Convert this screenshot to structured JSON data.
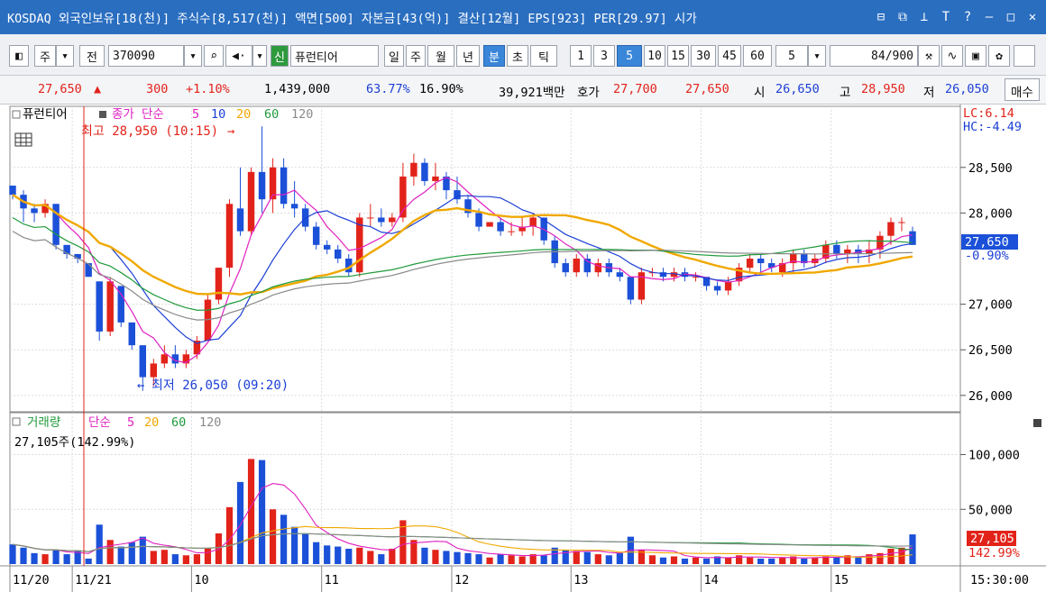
{
  "title": {
    "text": "KOSDAQ 외국인보유[18(천)] 주식수[8,517(천)] 액면[500] 자본금[43(억)] 결산[12월] EPS[923] PER[29.97] 시가",
    "window_icons": [
      "restore-icon",
      "copy-icon",
      "pin-icon",
      "text-icon",
      "help-icon",
      "minimize-icon",
      "maximize-icon",
      "close-icon"
    ]
  },
  "toolbar": {
    "market_label": "주",
    "prev_label": "전",
    "code_value": "370090",
    "badge_label": "신",
    "stock_name": "퓨런티어",
    "periods": [
      "일",
      "주",
      "월",
      "년",
      "분",
      "초",
      "틱"
    ],
    "active_period": "분",
    "intervals": [
      "1",
      "3",
      "5",
      "10",
      "15",
      "30",
      "45",
      "60"
    ],
    "active_interval": "5",
    "interval_select": "5",
    "count_value": "84",
    "count_total": "/900"
  },
  "info": {
    "price": "27,650",
    "change": "300",
    "change_pct": "+1.10%",
    "volume": "1,439,000",
    "pct1": "63.77%",
    "pct2": "16.90%",
    "amount": "39,921백만",
    "hoga_label": "호가",
    "ask": "27,700",
    "bid": "27,650",
    "open_label": "시",
    "open": "26,650",
    "high_label": "고",
    "high": "28,950",
    "low_label": "저",
    "low": "26,050",
    "trade_label": "매수"
  },
  "price_panel": {
    "stock_tag": "퓨런티어",
    "legend_main": "종가 단순",
    "ma_labels": [
      "5",
      "10",
      "20",
      "60",
      "120"
    ],
    "ma_colors": [
      "#e020c0",
      "#1b3fd6",
      "#f0a800",
      "#1f9a3a",
      "#8a8a8a"
    ],
    "high_marker": "최고 28,950 (10:15)",
    "low_marker": "최저 26,050 (09:20)",
    "lc": "LC:6.14",
    "hc": "HC:-4.49",
    "last_price": "27,650",
    "last_pct": "-0.90%",
    "y_ticks": [
      "28,500",
      "28,000",
      "27,000",
      "26,500",
      "26,000"
    ]
  },
  "volume_panel": {
    "legend_main": "거래량",
    "legend_ma": "단순",
    "ma_labels": [
      "5",
      "20",
      "60",
      "120"
    ],
    "readout": "27,105주(142.99%)",
    "last_volume": "27,105",
    "last_pct": "142.99%",
    "y_ticks": [
      "100,000",
      "50,000"
    ]
  },
  "x_axis": {
    "labels": [
      "11/20",
      "11/21",
      "10",
      "11",
      "12",
      "13",
      "14",
      "15"
    ],
    "time_label": "15:30:00"
  },
  "chart_data": {
    "type": "candlestick",
    "y_range": [
      25850,
      29150
    ],
    "up_color": "#e2231a",
    "down_color": "#1b50d8",
    "candles": [
      [
        28300,
        28300,
        28150,
        28200
      ],
      [
        28200,
        28250,
        27900,
        28050
      ],
      [
        28050,
        28100,
        27900,
        28000
      ],
      [
        28000,
        28150,
        27950,
        28100
      ],
      [
        28100,
        28100,
        27600,
        27650
      ],
      [
        27650,
        27650,
        27500,
        27550
      ],
      [
        27550,
        27550,
        27450,
        27500
      ],
      [
        27450,
        27450,
        27300,
        27300
      ],
      [
        27250,
        27250,
        26600,
        26700
      ],
      [
        26700,
        27300,
        26650,
        27250
      ],
      [
        27200,
        27200,
        26750,
        26800
      ],
      [
        26800,
        26800,
        26500,
        26550
      ],
      [
        26550,
        26550,
        26050,
        26200
      ],
      [
        26200,
        26400,
        26100,
        26350
      ],
      [
        26350,
        26550,
        26300,
        26450
      ],
      [
        26450,
        26550,
        26300,
        26350
      ],
      [
        26350,
        26500,
        26300,
        26450
      ],
      [
        26450,
        26650,
        26400,
        26600
      ],
      [
        26600,
        27100,
        26600,
        27050
      ],
      [
        27050,
        27400,
        27000,
        27400
      ],
      [
        27400,
        28150,
        27300,
        28100
      ],
      [
        28050,
        28500,
        27750,
        27800
      ],
      [
        27800,
        28500,
        27750,
        28450
      ],
      [
        28450,
        28950,
        28000,
        28150
      ],
      [
        28150,
        28600,
        28000,
        28500
      ],
      [
        28500,
        28600,
        28050,
        28100
      ],
      [
        28100,
        28350,
        27950,
        28050
      ],
      [
        28050,
        28100,
        27800,
        27850
      ],
      [
        27850,
        27900,
        27600,
        27650
      ],
      [
        27650,
        27700,
        27550,
        27600
      ],
      [
        27600,
        27650,
        27450,
        27500
      ],
      [
        27500,
        27550,
        27300,
        27350
      ],
      [
        27350,
        28000,
        27300,
        27950
      ],
      [
        27950,
        28100,
        27850,
        27950
      ],
      [
        27950,
        28050,
        27850,
        27900
      ],
      [
        27900,
        28000,
        27850,
        27950
      ],
      [
        27950,
        28550,
        27900,
        28400
      ],
      [
        28400,
        28650,
        28300,
        28550
      ],
      [
        28550,
        28600,
        28300,
        28350
      ],
      [
        28350,
        28550,
        28250,
        28400
      ],
      [
        28400,
        28450,
        28150,
        28250
      ],
      [
        28250,
        28400,
        28100,
        28150
      ],
      [
        28150,
        28200,
        27950,
        28000
      ],
      [
        28000,
        28050,
        27800,
        27850
      ],
      [
        27850,
        27900,
        27850,
        27900
      ],
      [
        27900,
        27950,
        27750,
        27800
      ],
      [
        27800,
        27900,
        27750,
        27800
      ],
      [
        27800,
        27950,
        27750,
        27850
      ],
      [
        27850,
        28000,
        27750,
        27950
      ],
      [
        27950,
        27950,
        27650,
        27700
      ],
      [
        27700,
        27750,
        27400,
        27450
      ],
      [
        27450,
        27500,
        27300,
        27350
      ],
      [
        27350,
        27550,
        27300,
        27500
      ],
      [
        27500,
        27550,
        27300,
        27350
      ],
      [
        27350,
        27500,
        27300,
        27450
      ],
      [
        27450,
        27500,
        27300,
        27350
      ],
      [
        27350,
        27400,
        27250,
        27300
      ],
      [
        27300,
        27300,
        27000,
        27050
      ],
      [
        27050,
        27400,
        27000,
        27350
      ],
      [
        27350,
        27400,
        27300,
        27350
      ],
      [
        27350,
        27400,
        27250,
        27300
      ],
      [
        27300,
        27400,
        27250,
        27350
      ],
      [
        27350,
        27400,
        27250,
        27300
      ],
      [
        27300,
        27350,
        27250,
        27300
      ],
      [
        27300,
        27300,
        27150,
        27200
      ],
      [
        27200,
        27250,
        27100,
        27150
      ],
      [
        27150,
        27300,
        27100,
        27250
      ],
      [
        27250,
        27450,
        27200,
        27400
      ],
      [
        27400,
        27550,
        27350,
        27500
      ],
      [
        27500,
        27550,
        27350,
        27450
      ],
      [
        27450,
        27500,
        27350,
        27400
      ],
      [
        27350,
        27500,
        27300,
        27450
      ],
      [
        27450,
        27600,
        27350,
        27550
      ],
      [
        27550,
        27600,
        27400,
        27450
      ],
      [
        27450,
        27550,
        27400,
        27500
      ],
      [
        27500,
        27700,
        27450,
        27650
      ],
      [
        27650,
        27700,
        27500,
        27550
      ],
      [
        27550,
        27650,
        27450,
        27600
      ],
      [
        27600,
        27650,
        27450,
        27550
      ],
      [
        27550,
        27700,
        27450,
        27600
      ],
      [
        27600,
        27800,
        27500,
        27750
      ],
      [
        27750,
        27950,
        27650,
        27900
      ],
      [
        27900,
        27950,
        27800,
        27900
      ],
      [
        27800,
        27850,
        27650,
        27650
      ]
    ],
    "volumes": [
      18000,
      15000,
      10000,
      9000,
      13000,
      9000,
      12000,
      5000,
      36000,
      22000,
      16000,
      20000,
      25000,
      12000,
      13000,
      9000,
      8000,
      9000,
      14000,
      28000,
      52000,
      75000,
      96000,
      95000,
      50000,
      45000,
      34000,
      28000,
      20000,
      17000,
      16000,
      14000,
      15000,
      12000,
      9000,
      14000,
      40000,
      22000,
      15000,
      13000,
      12000,
      11000,
      10000,
      9000,
      6000,
      9000,
      8000,
      7000,
      9000,
      8000,
      15000,
      13000,
      12000,
      11000,
      9000,
      8000,
      10000,
      25000,
      13000,
      8000,
      6000,
      7000,
      5000,
      6000,
      5000,
      7000,
      6000,
      8000,
      6000,
      5000,
      5000,
      6000,
      7000,
      5000,
      6000,
      7000,
      6000,
      8000,
      7000,
      9000,
      10000,
      14000,
      15000,
      27105
    ],
    "volume_range": [
      0,
      135000
    ],
    "day_separators": [
      {
        "label": "11/21",
        "index": 6
      },
      {
        "label": "10",
        "index": 17
      },
      {
        "label": "11",
        "index": 29
      },
      {
        "label": "12",
        "index": 41
      },
      {
        "label": "13",
        "index": 52
      },
      {
        "label": "14",
        "index": 64
      },
      {
        "label": "15",
        "index": 76
      }
    ]
  }
}
